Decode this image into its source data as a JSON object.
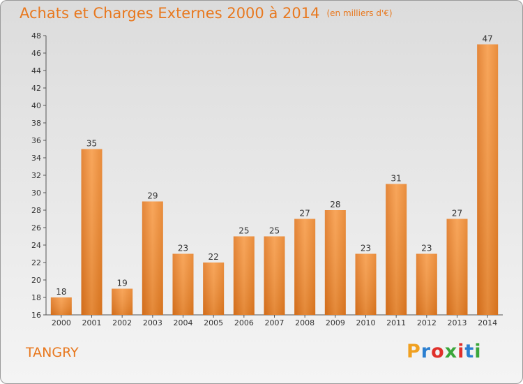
{
  "title": "Achats et Charges Externes 2000 à 2014",
  "unit": "(en milliers d'€)",
  "commune": "TANGRY",
  "logo": {
    "letters": [
      "P",
      "r",
      "o",
      "x",
      "i",
      "t",
      "i"
    ],
    "colors": [
      "#f0a020",
      "#2b7fd0",
      "#e0302a",
      "#3aa63a",
      "#e0302a",
      "#2b7fd0",
      "#3aa63a"
    ]
  },
  "chart_data": {
    "type": "bar",
    "categories": [
      "2000",
      "2001",
      "2002",
      "2003",
      "2004",
      "2005",
      "2006",
      "2007",
      "2008",
      "2009",
      "2010",
      "2011",
      "2012",
      "2013",
      "2014"
    ],
    "values": [
      18,
      35,
      19,
      29,
      23,
      22,
      25,
      25,
      27,
      28,
      23,
      31,
      23,
      27,
      47
    ],
    "ylim": [
      16,
      48
    ],
    "yticks": [
      16,
      18,
      20,
      22,
      24,
      26,
      28,
      30,
      32,
      34,
      36,
      38,
      40,
      42,
      44,
      46,
      48
    ],
    "grid": false,
    "bar_color": "#f0862a"
  }
}
